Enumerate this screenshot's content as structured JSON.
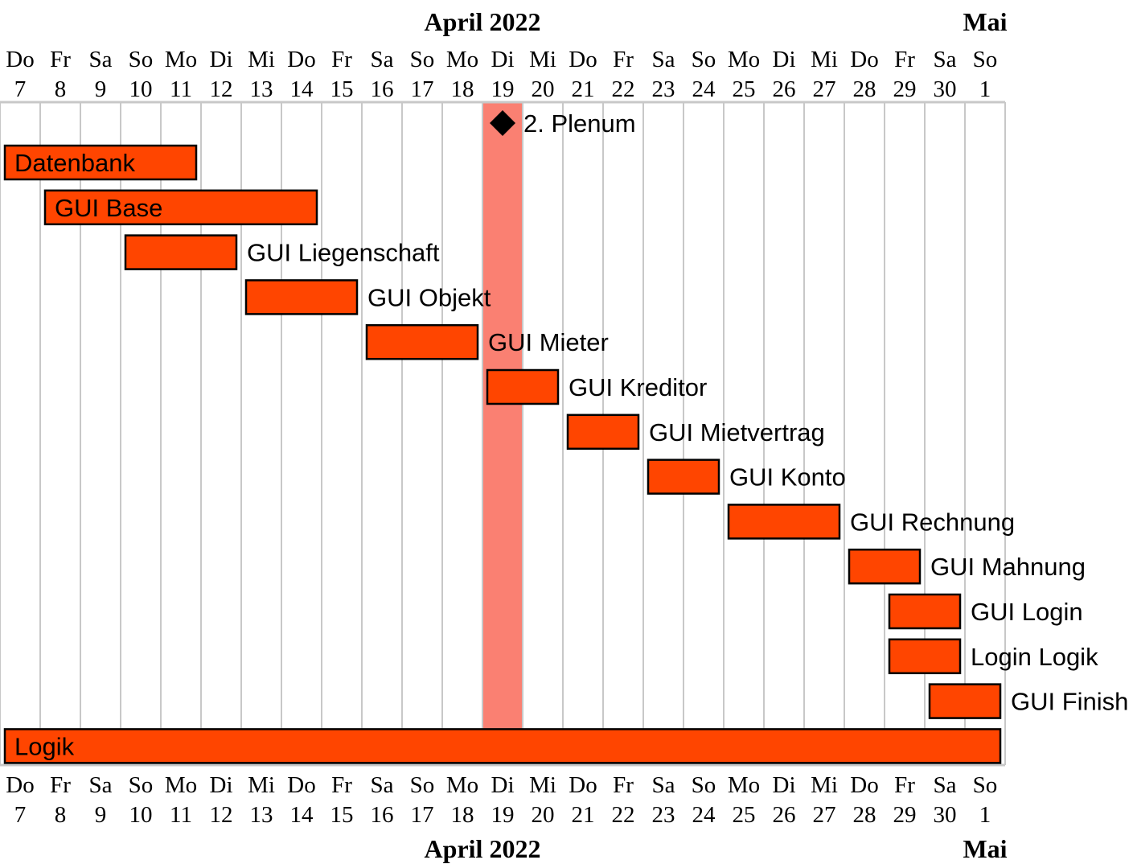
{
  "chart_data": {
    "type": "gantt",
    "months": [
      {
        "label": "April 2022",
        "start_day": "2022-04-07",
        "end_day": "2022-04-30"
      },
      {
        "label": "Mai",
        "start_day": "2022-05-01",
        "end_day": "2022-05-01"
      }
    ],
    "days": [
      {
        "weekday": "Do",
        "day": "7"
      },
      {
        "weekday": "Fr",
        "day": "8"
      },
      {
        "weekday": "Sa",
        "day": "9"
      },
      {
        "weekday": "So",
        "day": "10"
      },
      {
        "weekday": "Mo",
        "day": "11"
      },
      {
        "weekday": "Di",
        "day": "12"
      },
      {
        "weekday": "Mi",
        "day": "13"
      },
      {
        "weekday": "Do",
        "day": "14"
      },
      {
        "weekday": "Fr",
        "day": "15"
      },
      {
        "weekday": "Sa",
        "day": "16"
      },
      {
        "weekday": "So",
        "day": "17"
      },
      {
        "weekday": "Mo",
        "day": "18"
      },
      {
        "weekday": "Di",
        "day": "19"
      },
      {
        "weekday": "Mi",
        "day": "20"
      },
      {
        "weekday": "Do",
        "day": "21"
      },
      {
        "weekday": "Fr",
        "day": "22"
      },
      {
        "weekday": "Sa",
        "day": "23"
      },
      {
        "weekday": "So",
        "day": "24"
      },
      {
        "weekday": "Mo",
        "day": "25"
      },
      {
        "weekday": "Di",
        "day": "26"
      },
      {
        "weekday": "Mi",
        "day": "27"
      },
      {
        "weekday": "Do",
        "day": "28"
      },
      {
        "weekday": "Fr",
        "day": "29"
      },
      {
        "weekday": "Sa",
        "day": "30"
      },
      {
        "weekday": "So",
        "day": "1"
      }
    ],
    "today": "2022-04-19",
    "milestones": [
      {
        "label": "2. Plenum",
        "date": "2022-04-19"
      }
    ],
    "tasks": [
      {
        "label": "Datenbank",
        "start": "2022-04-07",
        "end": "2022-04-11",
        "label_inside": true
      },
      {
        "label": "GUI Base",
        "start": "2022-04-08",
        "end": "2022-04-14",
        "label_inside": true
      },
      {
        "label": "GUI Liegenschaft",
        "start": "2022-04-10",
        "end": "2022-04-12",
        "label_inside": false
      },
      {
        "label": "GUI Objekt",
        "start": "2022-04-13",
        "end": "2022-04-15",
        "label_inside": false
      },
      {
        "label": "GUI Mieter",
        "start": "2022-04-16",
        "end": "2022-04-18",
        "label_inside": false
      },
      {
        "label": "GUI Kreditor",
        "start": "2022-04-19",
        "end": "2022-04-20",
        "label_inside": false
      },
      {
        "label": "GUI Mietvertrag",
        "start": "2022-04-21",
        "end": "2022-04-22",
        "label_inside": false
      },
      {
        "label": "GUI Konto",
        "start": "2022-04-23",
        "end": "2022-04-24",
        "label_inside": false
      },
      {
        "label": "GUI Rechnung",
        "start": "2022-04-25",
        "end": "2022-04-27",
        "label_inside": false
      },
      {
        "label": "GUI Mahnung",
        "start": "2022-04-28",
        "end": "2022-04-29",
        "label_inside": false
      },
      {
        "label": "GUI Login",
        "start": "2022-04-29",
        "end": "2022-04-30",
        "label_inside": false
      },
      {
        "label": "Login Logik",
        "start": "2022-04-29",
        "end": "2022-04-30",
        "label_inside": false
      },
      {
        "label": "GUI Finish",
        "start": "2022-04-30",
        "end": "2022-05-01",
        "label_inside": false
      },
      {
        "label": "Logik",
        "start": "2022-04-07",
        "end": "2022-05-01",
        "label_inside": true
      }
    ],
    "colors": {
      "bar_fill": "#ff4500",
      "bar_stroke": "#000000",
      "today_fill": "#fa8072",
      "grid": "#c8c8c8",
      "milestone": "#000000"
    },
    "grid": true
  }
}
